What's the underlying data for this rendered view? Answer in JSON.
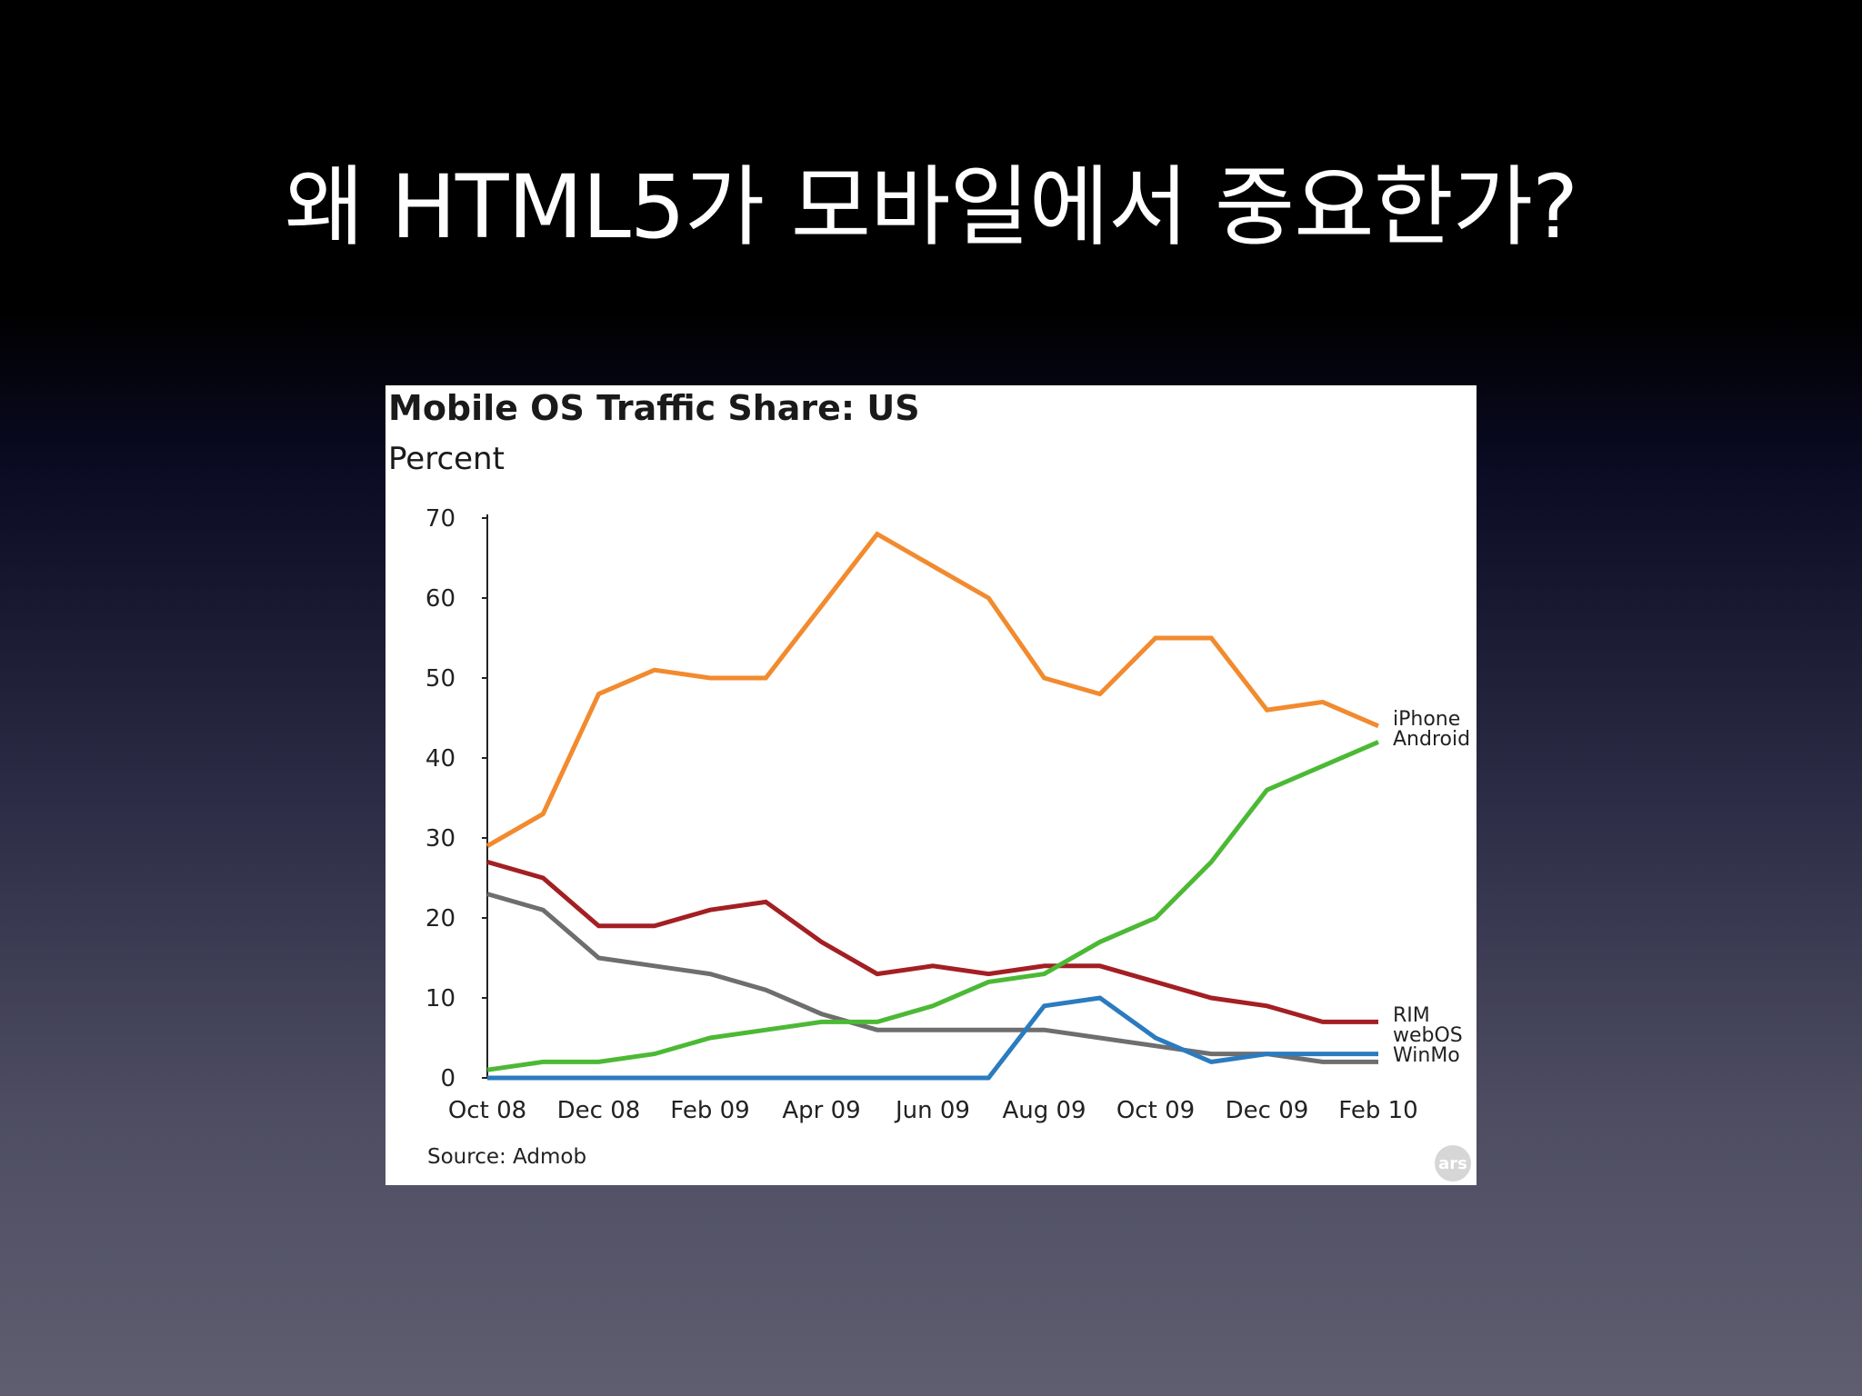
{
  "slide": {
    "title": "왜 HTML5가 모바일에서 중요한가?"
  },
  "chart_data": {
    "type": "line",
    "title": "Mobile OS Traffic Share: US",
    "ylabel": "Percent",
    "xlabel": "",
    "ylim": [
      0,
      70
    ],
    "yticks": [
      0,
      10,
      20,
      30,
      40,
      50,
      60,
      70
    ],
    "x": [
      "Oct 08",
      "Nov 08",
      "Dec 08",
      "Jan 09",
      "Feb 09",
      "Mar 09",
      "Apr 09",
      "May 09",
      "Jun 09",
      "Jul 09",
      "Aug 09",
      "Sep 09",
      "Oct 09",
      "Nov 09",
      "Dec 09",
      "Jan 10",
      "Feb 10"
    ],
    "xtick_labels": [
      "Oct 08",
      "Dec 08",
      "Feb 09",
      "Apr 09",
      "Jun 09",
      "Aug 09",
      "Oct 09",
      "Dec 09",
      "Feb 10"
    ],
    "series": [
      {
        "name": "iPhone",
        "color": "#f28a2e",
        "values": [
          29,
          33,
          48,
          51,
          50,
          50,
          59,
          68,
          64,
          60,
          50,
          48,
          55,
          55,
          46,
          47,
          44
        ]
      },
      {
        "name": "Android",
        "color": "#4cb935",
        "values": [
          1,
          2,
          2,
          3,
          5,
          6,
          7,
          7,
          9,
          12,
          13,
          17,
          20,
          27,
          36,
          39,
          42
        ]
      },
      {
        "name": "RIM",
        "color": "#a31f23",
        "values": [
          27,
          25,
          19,
          19,
          21,
          22,
          17,
          13,
          14,
          13,
          14,
          14,
          12,
          10,
          9,
          7,
          7
        ]
      },
      {
        "name": "webOS",
        "color": "#2b7bbf",
        "values": [
          0,
          0,
          0,
          0,
          0,
          0,
          0,
          0,
          0,
          0,
          9,
          10,
          5,
          2,
          3,
          3,
          3
        ]
      },
      {
        "name": "WinMo",
        "color": "#6e6e6e",
        "values": [
          23,
          21,
          15,
          14,
          13,
          11,
          8,
          6,
          6,
          6,
          6,
          5,
          4,
          3,
          3,
          2,
          2
        ]
      }
    ],
    "grid": false,
    "legend": "right-end labels",
    "source": "Source: Admob",
    "watermark": "ars"
  }
}
